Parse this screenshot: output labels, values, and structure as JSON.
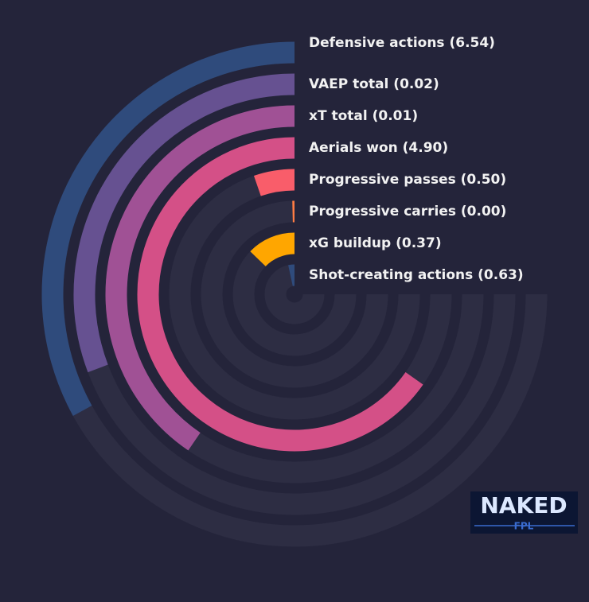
{
  "chart_data": {
    "type": "radial-bar",
    "categories": [
      "Defensive actions (6.54)",
      "VAEP total (0.02)",
      "xT total (0.01)",
      "Aerials won (4.90)",
      "Progressive passes (0.50)",
      "Progressive carries (0.00)",
      "xG buildup (0.37)",
      "Shot-creating actions (0.63)"
    ],
    "values": [
      44,
      41,
      54,
      87,
      7,
      0.5,
      17,
      4.5
    ],
    "colors": [
      "#2f4b7c",
      "#665191",
      "#a05195",
      "#d45087",
      "#f95d6a",
      "#ff7c43",
      "#ffa600",
      "#2f4b7c"
    ],
    "ylim": [
      0,
      100
    ]
  },
  "logo": {
    "title": "NAKED",
    "subtitle": "FPL"
  }
}
